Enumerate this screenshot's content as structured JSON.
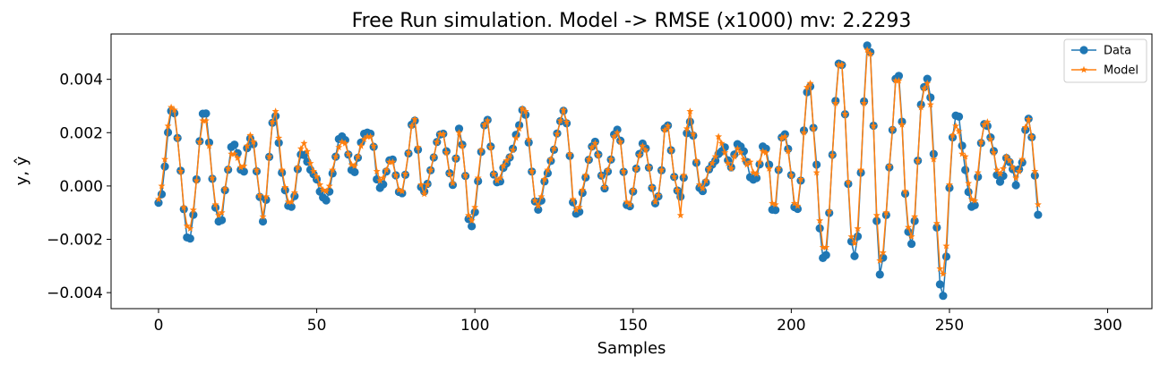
{
  "chart_data": {
    "type": "line",
    "title": "Free Run simulation. Model -> RMSE (x1000) mv: 2.2293",
    "xlabel": "Samples",
    "ylabel": "y, ŷ",
    "xlim": [
      -15,
      314
    ],
    "ylim": [
      -0.0046,
      0.0057
    ],
    "x_ticks": [
      0,
      50,
      100,
      150,
      200,
      250,
      300
    ],
    "x_tick_labels": [
      "0",
      "50",
      "100",
      "150",
      "200",
      "250",
      "300"
    ],
    "y_ticks": [
      -0.004,
      -0.002,
      0.0,
      0.002,
      0.004
    ],
    "y_tick_labels": [
      "−0.004",
      "−0.002",
      "0.000",
      "0.002",
      "0.004"
    ],
    "grid": false,
    "legend_position": "top-right",
    "series": [
      {
        "name": "Data",
        "color": "#1f77b4",
        "marker": "circle",
        "x_start": 0,
        "values": [
          -0.00063,
          -0.00031,
          0.00073,
          0.00201,
          0.00281,
          0.00273,
          0.0018,
          0.00057,
          -0.00087,
          -0.00193,
          -0.00197,
          -0.00108,
          0.00025,
          0.00168,
          0.00271,
          0.00272,
          0.00163,
          0.00027,
          -0.00081,
          -0.00133,
          -0.00128,
          -0.00016,
          0.00061,
          0.00146,
          0.00155,
          0.00123,
          0.00061,
          0.00054,
          0.00142,
          0.00178,
          0.00157,
          0.00055,
          -0.00041,
          -0.00133,
          -0.00052,
          0.00109,
          0.00237,
          0.00262,
          0.00162,
          0.0005,
          -0.00016,
          -0.00074,
          -0.00078,
          -0.00038,
          0.00063,
          0.00118,
          0.00116,
          0.00091,
          0.00061,
          0.00044,
          0.00025,
          -0.00021,
          -0.00043,
          -0.00054,
          -0.00021,
          0.00047,
          0.0011,
          0.00176,
          0.00186,
          0.00172,
          0.00118,
          0.0006,
          0.00052,
          0.00106,
          0.00163,
          0.00196,
          0.002,
          0.00196,
          0.00147,
          0.00025,
          -7e-05,
          6e-05,
          0.00054,
          0.00096,
          0.00099,
          0.0004,
          -0.00022,
          -0.00027,
          0.00042,
          0.00122,
          0.0023,
          0.00245,
          0.00136,
          -4e-05,
          -0.00021,
          8e-05,
          0.00059,
          0.00107,
          0.00165,
          0.00193,
          0.00196,
          0.0013,
          0.00048,
          4e-05,
          0.00103,
          0.00215,
          0.00155,
          0.00038,
          -0.00124,
          -0.00151,
          -0.00098,
          0.00018,
          0.00128,
          0.00228,
          0.00248,
          0.00148,
          0.00043,
          0.00014,
          0.00017,
          0.00068,
          0.00085,
          0.00107,
          0.0014,
          0.00192,
          0.00228,
          0.00285,
          0.00267,
          0.00163,
          0.00054,
          -0.00058,
          -0.00089,
          -0.00055,
          0.00017,
          0.00048,
          0.00094,
          0.00136,
          0.00197,
          0.00243,
          0.00282,
          0.00235,
          0.00113,
          -0.00061,
          -0.00104,
          -0.00097,
          -0.00026,
          0.00032,
          0.00098,
          0.00148,
          0.00166,
          0.00118,
          0.00039,
          -9e-05,
          0.00054,
          0.00099,
          0.00193,
          0.00211,
          0.0017,
          0.00053,
          -0.00071,
          -0.00076,
          -0.00021,
          0.00065,
          0.0012,
          0.00159,
          0.00141,
          0.00069,
          -7e-05,
          -0.00065,
          -0.00039,
          0.00059,
          0.00216,
          0.00227,
          0.00134,
          0.00034,
          -0.00017,
          -0.0004,
          0.00031,
          0.00198,
          0.00241,
          0.00189,
          0.00087,
          -7e-05,
          -0.00019,
          0.00013,
          0.00062,
          0.0008,
          0.00095,
          0.0012,
          0.0013,
          0.00145,
          0.00096,
          0.0007,
          0.00118,
          0.00157,
          0.00148,
          0.0013,
          0.0009,
          0.00033,
          0.00024,
          0.0003,
          0.00081,
          0.00148,
          0.0014,
          0.0008,
          -0.00089,
          -0.0009,
          0.0006,
          0.00182,
          0.00194,
          0.00139,
          0.00041,
          -0.00079,
          -0.00086,
          0.0002,
          0.00208,
          0.00352,
          0.00373,
          0.00218,
          0.0008,
          -0.00159,
          -0.0027,
          -0.00259,
          -0.00101,
          0.00117,
          0.00319,
          0.00459,
          0.00454,
          0.00269,
          8e-05,
          -0.00208,
          -0.00263,
          -0.00189,
          0.0005,
          0.00317,
          0.00527,
          0.00502,
          0.00226,
          -0.00131,
          -0.00332,
          -0.00269,
          -0.00109,
          0.0007,
          0.0021,
          0.00402,
          0.00413,
          0.00241,
          -0.00029,
          -0.00172,
          -0.00217,
          -0.00131,
          0.00095,
          0.00305,
          0.00371,
          0.00402,
          0.00332,
          0.0012,
          -0.00156,
          -0.00369,
          -0.00412,
          -0.00265,
          -7e-05,
          0.00182,
          0.00264,
          0.0026,
          0.00151,
          0.0006,
          -0.00022,
          -0.00078,
          -0.00072,
          0.00034,
          0.00161,
          0.00232,
          0.00225,
          0.00182,
          0.00131,
          0.00041,
          0.00016,
          0.00038,
          0.00105,
          0.0009,
          0.00063,
          3e-05,
          0.00062,
          0.00088,
          0.0021,
          0.00252,
          0.00183,
          0.00039,
          -0.00108
        ]
      },
      {
        "name": "Model",
        "color": "#ff7f0e",
        "marker": "star",
        "x_start": 0,
        "values": [
          -0.0005,
          0.0,
          0.001,
          0.00225,
          0.00295,
          0.00285,
          0.0018,
          0.00055,
          -0.0008,
          -0.0015,
          -0.0016,
          -0.0009,
          0.0002,
          0.00165,
          0.00245,
          0.00245,
          0.0015,
          0.0003,
          -0.0007,
          -0.0011,
          -0.001,
          -0.0001,
          0.00065,
          0.0012,
          0.0012,
          0.00105,
          0.0007,
          0.00075,
          0.0015,
          0.0019,
          0.00165,
          0.0006,
          -0.00035,
          -0.00115,
          -0.0004,
          0.0011,
          0.0024,
          0.0028,
          0.0018,
          0.0006,
          -5e-05,
          -0.0006,
          -0.0006,
          -0.00025,
          0.0007,
          0.0014,
          0.0016,
          0.0013,
          0.00085,
          0.00055,
          0.00035,
          5e-05,
          -0.00015,
          -0.0002,
          0.0,
          0.0006,
          0.0011,
          0.00145,
          0.00165,
          0.0016,
          0.0012,
          0.0008,
          0.00075,
          0.0011,
          0.0015,
          0.00175,
          0.00185,
          0.00185,
          0.0015,
          0.00055,
          0.0002,
          0.0003,
          0.0006,
          0.0009,
          0.0009,
          0.0004,
          -0.00015,
          -0.0002,
          0.00045,
          0.00125,
          0.00225,
          0.0025,
          0.00145,
          5e-05,
          -0.0003,
          5e-05,
          0.0006,
          0.0011,
          0.00165,
          0.00195,
          0.00195,
          0.00125,
          0.00045,
          0.0001,
          0.00105,
          0.002,
          0.0015,
          0.0004,
          -0.0011,
          -0.0013,
          -0.0008,
          0.0003,
          0.00135,
          0.0023,
          0.00245,
          0.00145,
          0.00045,
          0.0002,
          0.0003,
          0.00075,
          0.00095,
          0.0011,
          0.00135,
          0.0018,
          0.00215,
          0.0029,
          0.0028,
          0.00175,
          0.00055,
          -0.00055,
          -0.00075,
          -0.0004,
          0.00025,
          0.0006,
          0.001,
          0.0014,
          0.00195,
          0.00245,
          0.00285,
          0.0024,
          0.0012,
          -0.0005,
          -0.0009,
          -0.0008,
          -0.00015,
          0.0004,
          0.001,
          0.00145,
          0.0016,
          0.00115,
          0.0004,
          -5e-05,
          0.0006,
          0.001,
          0.00185,
          0.002,
          0.00165,
          0.00055,
          -0.0006,
          -0.0007,
          -0.00015,
          0.00065,
          0.00115,
          0.0015,
          0.00135,
          0.0007,
          -5e-05,
          -0.0006,
          -0.00035,
          0.0006,
          0.0021,
          0.00225,
          0.00135,
          0.00035,
          -0.00015,
          -0.0011,
          0.0004,
          0.00215,
          0.0028,
          0.00195,
          0.00095,
          5e-05,
          -0.0001,
          0.0002,
          0.00065,
          0.00085,
          0.0011,
          0.00185,
          0.0016,
          0.00125,
          0.00085,
          0.00065,
          0.0011,
          0.0014,
          0.00125,
          0.001,
          0.0008,
          0.0009,
          0.0005,
          0.00045,
          0.0009,
          0.0013,
          0.00125,
          0.00065,
          -0.00065,
          -0.0007,
          0.00065,
          0.0018,
          0.00185,
          0.0013,
          0.0004,
          -0.00065,
          -0.00075,
          0.00025,
          0.002,
          0.0037,
          0.00385,
          0.00215,
          0.0005,
          -0.0013,
          -0.0023,
          -0.0023,
          -0.00095,
          0.00115,
          0.0031,
          0.00455,
          0.00455,
          0.0027,
          0.00015,
          -0.0019,
          -0.00215,
          -0.0016,
          0.0006,
          0.0031,
          0.0051,
          0.00495,
          0.00225,
          -0.0011,
          -0.0028,
          -0.0025,
          -0.001,
          0.00075,
          0.00215,
          0.00395,
          0.00395,
          0.0023,
          -0.0002,
          -0.00155,
          -0.0019,
          -0.00115,
          0.00095,
          0.00295,
          0.00365,
          0.00385,
          0.00305,
          0.001,
          -0.0014,
          -0.0031,
          -0.0033,
          -0.00225,
          5e-05,
          0.0019,
          0.00225,
          0.00205,
          0.0012,
          0.0011,
          0.0001,
          -0.0005,
          -0.00055,
          0.0005,
          0.00165,
          0.0023,
          0.0024,
          0.00175,
          0.00125,
          0.0006,
          0.00045,
          0.00065,
          0.0011,
          0.00095,
          0.0007,
          0.0003,
          0.00055,
          0.001,
          0.0022,
          0.0025,
          0.00185,
          0.00055,
          -0.0007
        ]
      }
    ]
  }
}
